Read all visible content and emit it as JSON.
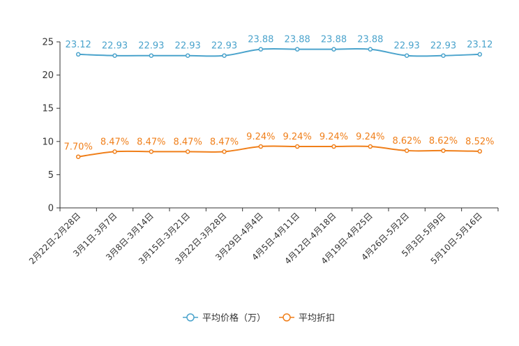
{
  "chart_data": {
    "type": "line",
    "categories": [
      "2月22日-2月28日",
      "3月1日-3月7日",
      "3月8日-3月14日",
      "3月15日-3月21日",
      "3月22日-3月28日",
      "3月29日-4月4日",
      "4月5日-4月11日",
      "4月12日-4月18日",
      "4月19日-4月25日",
      "4月26日-5月2日",
      "5月3日-5月9日",
      "5月10日-5月16日"
    ],
    "series": [
      {
        "name": "平均价格（万）",
        "color": "#4aa3cc",
        "values": [
          23.12,
          22.93,
          22.93,
          22.93,
          22.93,
          23.88,
          23.88,
          23.88,
          23.88,
          22.93,
          22.93,
          23.12
        ],
        "labels": [
          "23.12",
          "22.93",
          "22.93",
          "22.93",
          "22.93",
          "23.88",
          "23.88",
          "23.88",
          "23.88",
          "22.93",
          "22.93",
          "23.12"
        ]
      },
      {
        "name": "平均折扣",
        "color": "#f07f1a",
        "values": [
          7.7,
          8.47,
          8.47,
          8.47,
          8.47,
          9.24,
          9.24,
          9.24,
          9.24,
          8.62,
          8.62,
          8.52
        ],
        "labels": [
          "7.70%",
          "8.47%",
          "8.47%",
          "8.47%",
          "8.47%",
          "9.24%",
          "9.24%",
          "9.24%",
          "9.24%",
          "8.62%",
          "8.62%",
          "8.52%"
        ]
      }
    ],
    "yticks": [
      "0",
      "5",
      "10",
      "15",
      "20",
      "25"
    ],
    "ylim": [
      0,
      25
    ],
    "title": "",
    "xlabel": "",
    "ylabel": "",
    "legend_position": "bottom-center"
  }
}
